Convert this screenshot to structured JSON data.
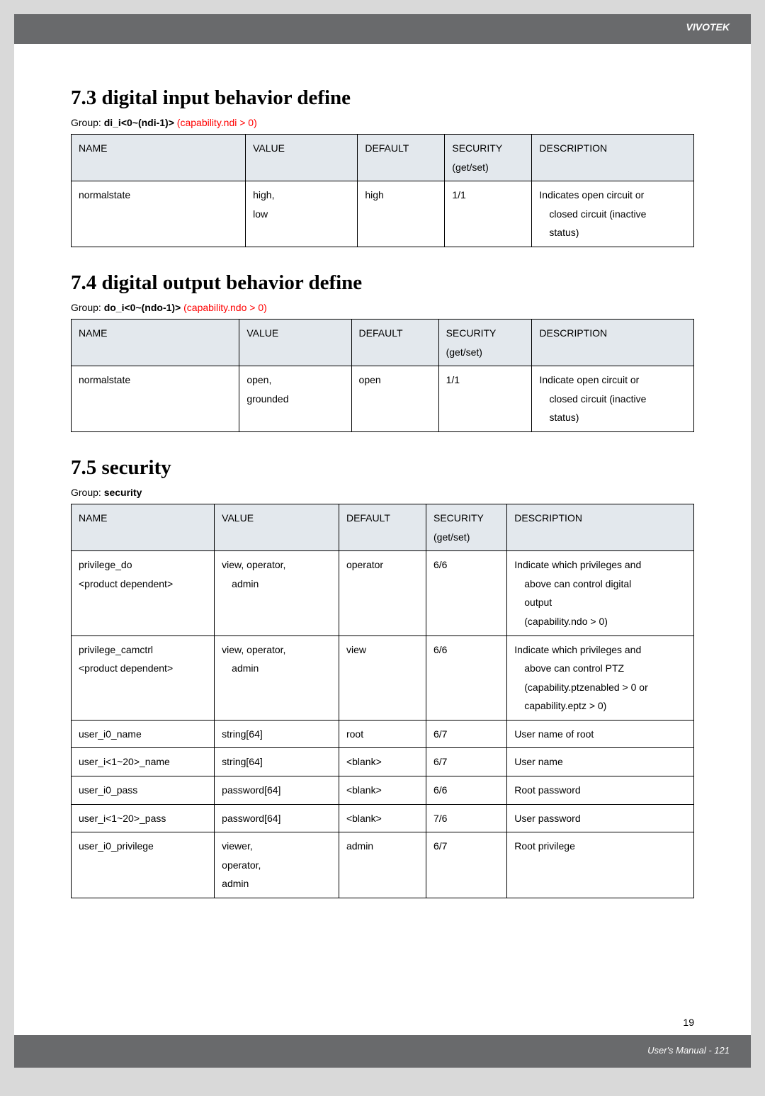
{
  "header": {
    "brand": "VIVOTEK"
  },
  "sections": [
    {
      "title": "7.3 digital input behavior define",
      "group_prefix": "Group: ",
      "group_name": "di_i<0~(ndi-1)>",
      "group_cap": " (capability.ndi > 0)",
      "cols": [
        28,
        18,
        14,
        14,
        26
      ],
      "headers": [
        "NAME",
        "VALUE",
        "DEFAULT",
        "SECURITY\n(get/set)",
        "DESCRIPTION"
      ],
      "rows": [
        [
          "normalstate",
          "high,\nlow",
          "high",
          "1/1",
          "Indicates open circuit or\n  closed circuit (inactive\n  status)"
        ]
      ]
    },
    {
      "title": "7.4 digital output behavior define",
      "group_prefix": "Group: ",
      "group_name": "do_i<0~(ndo-1)>",
      "group_cap": " (capability.ndo > 0)",
      "cols": [
        27,
        18,
        14,
        15,
        26
      ],
      "headers": [
        "NAME",
        "VALUE",
        "DEFAULT",
        "SECURITY\n(get/set)",
        "DESCRIPTION"
      ],
      "rows": [
        [
          "normalstate",
          "open,\ngrounded",
          "open",
          "1/1",
          "Indicate open circuit or\n  closed circuit (inactive\n  status)"
        ]
      ]
    },
    {
      "title": "7.5 security",
      "group_prefix": "Group: ",
      "group_name": "security",
      "group_cap": "",
      "cols": [
        23,
        20,
        14,
        13,
        30
      ],
      "headers": [
        "NAME",
        "VALUE",
        "DEFAULT",
        "SECURITY\n(get/set)",
        "DESCRIPTION"
      ],
      "rows": [
        [
          "privilege_do\n<product dependent>",
          "view, operator,\n  admin",
          "operator",
          "6/6",
          "Indicate which privileges and\n  above can control digital\n  output\n  (capability.ndo > 0)"
        ],
        [
          "privilege_camctrl\n<product dependent>",
          "view, operator,\n  admin",
          "view",
          "6/6",
          "Indicate which privileges and\n  above can control PTZ\n  (capability.ptzenabled > 0 or\n  capability.eptz > 0)"
        ],
        [
          "user_i0_name",
          "string[64]",
          "root",
          "6/7",
          "User name of root"
        ],
        [
          "user_i<1~20>_name",
          "string[64]",
          "<blank>",
          "6/7",
          "User name"
        ],
        [
          "user_i0_pass",
          "password[64]",
          "<blank>",
          "6/6",
          "Root password"
        ],
        [
          "user_i<1~20>_pass",
          "password[64]",
          "<blank>",
          "7/6",
          "User password"
        ],
        [
          "user_i0_privilege",
          "viewer,\noperator,\nadmin",
          "admin",
          "6/7",
          "Root privilege"
        ]
      ]
    }
  ],
  "footer": {
    "small_page": "19",
    "label": "User's Manual - 121"
  },
  "colors": {
    "page_bg": "#d9d9d9",
    "sheet_bg": "#ffffff",
    "band_bg": "#696a6c",
    "band_text": "#ffffff",
    "th_bg": "#e3e8ed",
    "body_text": "#000000",
    "cap_text": "#ff0000"
  }
}
